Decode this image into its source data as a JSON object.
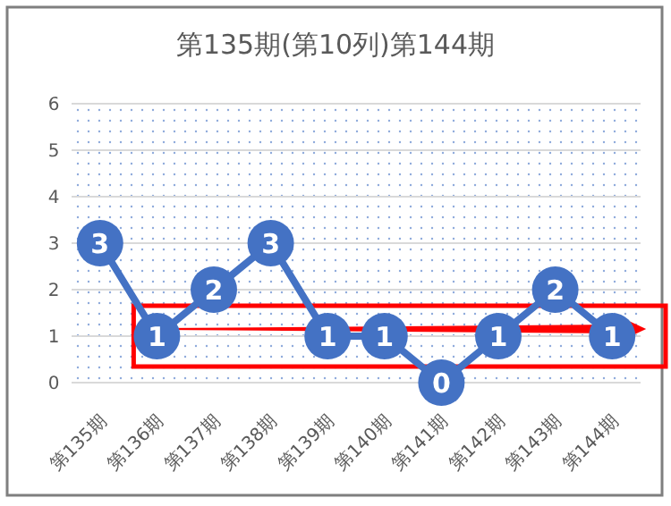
{
  "chart_data": {
    "type": "line",
    "title": "第135期(第10列)第144期",
    "categories": [
      "第135期",
      "第136期",
      "第137期",
      "第138期",
      "第139期",
      "第140期",
      "第141期",
      "第142期",
      "第143期",
      "第144期"
    ],
    "series": [
      {
        "color": "#4472c4",
        "values": [
          3,
          1,
          2,
          3,
          1,
          1,
          0,
          1,
          2,
          1
        ]
      }
    ],
    "ylim": [
      0,
      6
    ],
    "yticks": [
      0,
      1,
      2,
      3,
      4,
      5,
      6
    ],
    "grid": "y",
    "marker": "circle",
    "data_labels": true
  }
}
